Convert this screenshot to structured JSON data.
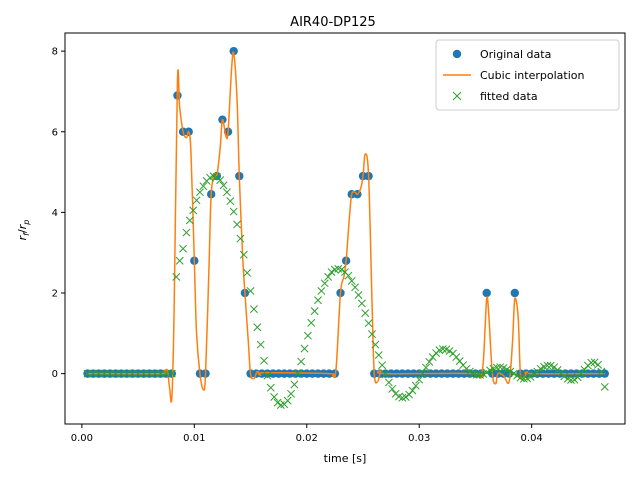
{
  "chart_data": {
    "type": "line",
    "title": "AIR40-DP125",
    "xlabel": "time [s]",
    "ylabel_main": "r",
    "ylabel_sub1": "f",
    "ylabel_sub2": "p",
    "xlim": [
      -0.0015,
      0.0483
    ],
    "ylim": [
      -1.25,
      8.45
    ],
    "xticks": [
      0.0,
      0.01,
      0.02,
      0.03,
      0.04
    ],
    "xtick_labels": [
      "0.00",
      "0.01",
      "0.02",
      "0.03",
      "0.04"
    ],
    "yticks": [
      0,
      2,
      4,
      6,
      8
    ],
    "ytick_labels": [
      "0",
      "2",
      "4",
      "6",
      "8"
    ],
    "legend_position": "top-right",
    "colors": {
      "original": "#1f77b4",
      "interp": "#ff7f0e",
      "fitted": "#2ca02c"
    },
    "series": [
      {
        "name": "Original data",
        "style": "markers-circle",
        "points": [
          [
            0.0005,
            0
          ],
          [
            0.001,
            0
          ],
          [
            0.0015,
            0
          ],
          [
            0.002,
            0
          ],
          [
            0.0025,
            0
          ],
          [
            0.003,
            0
          ],
          [
            0.0035,
            0
          ],
          [
            0.004,
            0
          ],
          [
            0.0045,
            0
          ],
          [
            0.005,
            0
          ],
          [
            0.0055,
            0
          ],
          [
            0.006,
            0
          ],
          [
            0.0065,
            0
          ],
          [
            0.007,
            0
          ],
          [
            0.0075,
            0
          ],
          [
            0.008,
            0
          ],
          [
            0.0085,
            6.9
          ],
          [
            0.009,
            6.0
          ],
          [
            0.0095,
            6.0
          ],
          [
            0.01,
            2.8
          ],
          [
            0.0105,
            0
          ],
          [
            0.011,
            0
          ],
          [
            0.0115,
            4.45
          ],
          [
            0.012,
            4.9
          ],
          [
            0.0125,
            6.3
          ],
          [
            0.013,
            6.0
          ],
          [
            0.0135,
            8.0
          ],
          [
            0.014,
            4.9
          ],
          [
            0.0145,
            2.0
          ],
          [
            0.015,
            0
          ],
          [
            0.0155,
            0
          ],
          [
            0.016,
            0
          ],
          [
            0.0165,
            0
          ],
          [
            0.017,
            0
          ],
          [
            0.0175,
            0
          ],
          [
            0.018,
            0
          ],
          [
            0.0185,
            0
          ],
          [
            0.019,
            0
          ],
          [
            0.0195,
            0
          ],
          [
            0.02,
            0
          ],
          [
            0.0205,
            0
          ],
          [
            0.021,
            0
          ],
          [
            0.0215,
            0
          ],
          [
            0.022,
            0
          ],
          [
            0.0225,
            0
          ],
          [
            0.023,
            2.0
          ],
          [
            0.0235,
            2.8
          ],
          [
            0.024,
            4.45
          ],
          [
            0.0245,
            4.45
          ],
          [
            0.025,
            4.9
          ],
          [
            0.0255,
            4.9
          ],
          [
            0.026,
            0
          ],
          [
            0.0265,
            0
          ],
          [
            0.027,
            0
          ],
          [
            0.0275,
            0
          ],
          [
            0.028,
            0
          ],
          [
            0.0285,
            0
          ],
          [
            0.029,
            0
          ],
          [
            0.0295,
            0
          ],
          [
            0.03,
            0
          ],
          [
            0.0305,
            0
          ],
          [
            0.031,
            0
          ],
          [
            0.0315,
            0
          ],
          [
            0.032,
            0
          ],
          [
            0.0325,
            0
          ],
          [
            0.033,
            0
          ],
          [
            0.0335,
            0
          ],
          [
            0.034,
            0
          ],
          [
            0.0345,
            0
          ],
          [
            0.035,
            0
          ],
          [
            0.0355,
            0
          ],
          [
            0.036,
            2.0
          ],
          [
            0.0365,
            0
          ],
          [
            0.037,
            0
          ],
          [
            0.0375,
            0
          ],
          [
            0.038,
            0
          ],
          [
            0.0385,
            2.0
          ],
          [
            0.039,
            0
          ],
          [
            0.0395,
            0
          ],
          [
            0.04,
            0
          ],
          [
            0.0405,
            0
          ],
          [
            0.041,
            0
          ],
          [
            0.0415,
            0
          ],
          [
            0.042,
            0
          ],
          [
            0.0425,
            0
          ],
          [
            0.043,
            0
          ],
          [
            0.0435,
            0
          ],
          [
            0.044,
            0
          ],
          [
            0.0445,
            0
          ],
          [
            0.045,
            0
          ],
          [
            0.0455,
            0
          ],
          [
            0.046,
            0
          ],
          [
            0.0465,
            0
          ]
        ]
      },
      {
        "name": "Cubic interpolation",
        "style": "line",
        "points": [
          [
            0.0005,
            0
          ],
          [
            0.007,
            0
          ],
          [
            0.0073,
            0.05
          ],
          [
            0.0076,
            0.08
          ],
          [
            0.0078,
            -0.35
          ],
          [
            0.008,
            -0.6
          ],
          [
            0.0082,
            1.5
          ],
          [
            0.0085,
            7.25
          ],
          [
            0.0087,
            6.6
          ],
          [
            0.009,
            6.0
          ],
          [
            0.0093,
            5.85
          ],
          [
            0.0095,
            6.0
          ],
          [
            0.0097,
            5.5
          ],
          [
            0.01,
            2.8
          ],
          [
            0.0102,
            1.0
          ],
          [
            0.0105,
            0
          ],
          [
            0.0108,
            -0.4
          ],
          [
            0.011,
            0
          ],
          [
            0.0113,
            2.6
          ],
          [
            0.0115,
            4.45
          ],
          [
            0.0118,
            4.95
          ],
          [
            0.012,
            4.9
          ],
          [
            0.0123,
            5.6
          ],
          [
            0.0125,
            6.3
          ],
          [
            0.0128,
            5.9
          ],
          [
            0.013,
            6.0
          ],
          [
            0.0133,
            7.5
          ],
          [
            0.0135,
            7.95
          ],
          [
            0.0138,
            6.8
          ],
          [
            0.014,
            4.9
          ],
          [
            0.0143,
            2.9
          ],
          [
            0.0145,
            2.0
          ],
          [
            0.0148,
            0.8
          ],
          [
            0.015,
            0
          ],
          [
            0.0153,
            -0.12
          ],
          [
            0.0156,
            0.05
          ],
          [
            0.0159,
            -0.04
          ],
          [
            0.0162,
            0.02
          ],
          [
            0.022,
            0
          ],
          [
            0.0223,
            -0.05
          ],
          [
            0.0226,
            0.1
          ],
          [
            0.023,
            2.0
          ],
          [
            0.0233,
            2.4
          ],
          [
            0.0235,
            2.8
          ],
          [
            0.0238,
            3.9
          ],
          [
            0.024,
            4.45
          ],
          [
            0.0243,
            4.5
          ],
          [
            0.0245,
            4.45
          ],
          [
            0.0248,
            4.6
          ],
          [
            0.025,
            4.9
          ],
          [
            0.0252,
            5.45
          ],
          [
            0.0255,
            4.9
          ],
          [
            0.0258,
            1.8
          ],
          [
            0.026,
            0
          ],
          [
            0.0263,
            -0.2
          ],
          [
            0.0266,
            0.06
          ],
          [
            0.027,
            0
          ],
          [
            0.035,
            0
          ],
          [
            0.0354,
            -0.1
          ],
          [
            0.0357,
            0.3
          ],
          [
            0.036,
            1.85
          ],
          [
            0.0362,
            1.4
          ],
          [
            0.0365,
            0
          ],
          [
            0.0368,
            -0.25
          ],
          [
            0.037,
            0
          ],
          [
            0.0375,
            -0.05
          ],
          [
            0.038,
            -0.2
          ],
          [
            0.0383,
            0.8
          ],
          [
            0.0385,
            1.85
          ],
          [
            0.0388,
            1.4
          ],
          [
            0.039,
            0
          ],
          [
            0.0393,
            -0.1
          ],
          [
            0.0396,
            0.04
          ],
          [
            0.04,
            0
          ],
          [
            0.0465,
            0
          ]
        ]
      },
      {
        "name": "fitted data",
        "style": "markers-x",
        "points": [
          [
            0.0005,
            0
          ],
          [
            0.001,
            0
          ],
          [
            0.0015,
            0
          ],
          [
            0.002,
            0
          ],
          [
            0.0025,
            0
          ],
          [
            0.003,
            0
          ],
          [
            0.0035,
            0
          ],
          [
            0.004,
            0
          ],
          [
            0.0045,
            0
          ],
          [
            0.005,
            0
          ],
          [
            0.0055,
            0
          ],
          [
            0.006,
            0
          ],
          [
            0.0065,
            0
          ],
          [
            0.007,
            0
          ],
          [
            0.0075,
            0
          ],
          [
            0.008,
            0
          ],
          [
            0.0084,
            2.4
          ],
          [
            0.0087,
            2.8
          ],
          [
            0.009,
            3.1
          ],
          [
            0.0093,
            3.5
          ],
          [
            0.0096,
            3.8
          ],
          [
            0.0099,
            4.05
          ],
          [
            0.0102,
            4.3
          ],
          [
            0.0105,
            4.5
          ],
          [
            0.0108,
            4.65
          ],
          [
            0.0111,
            4.78
          ],
          [
            0.0114,
            4.86
          ],
          [
            0.0117,
            4.9
          ],
          [
            0.012,
            4.88
          ],
          [
            0.0123,
            4.8
          ],
          [
            0.0126,
            4.67
          ],
          [
            0.0129,
            4.5
          ],
          [
            0.0132,
            4.28
          ],
          [
            0.0135,
            4.02
          ],
          [
            0.0138,
            3.7
          ],
          [
            0.0141,
            3.35
          ],
          [
            0.0144,
            2.95
          ],
          [
            0.0147,
            2.5
          ],
          [
            0.015,
            2.05
          ],
          [
            0.0153,
            1.6
          ],
          [
            0.0156,
            1.15
          ],
          [
            0.0159,
            0.72
          ],
          [
            0.0162,
            0.32
          ],
          [
            0.0165,
            -0.05
          ],
          [
            0.0168,
            -0.35
          ],
          [
            0.0171,
            -0.58
          ],
          [
            0.0174,
            -0.72
          ],
          [
            0.0177,
            -0.78
          ],
          [
            0.018,
            -0.76
          ],
          [
            0.0183,
            -0.67
          ],
          [
            0.0186,
            -0.5
          ],
          [
            0.0189,
            -0.27
          ],
          [
            0.0192,
            0
          ],
          [
            0.0195,
            0.3
          ],
          [
            0.0198,
            0.62
          ],
          [
            0.0201,
            0.94
          ],
          [
            0.0204,
            1.26
          ],
          [
            0.0207,
            1.55
          ],
          [
            0.021,
            1.82
          ],
          [
            0.0213,
            2.05
          ],
          [
            0.0216,
            2.24
          ],
          [
            0.0219,
            2.4
          ],
          [
            0.0222,
            2.52
          ],
          [
            0.0225,
            2.58
          ],
          [
            0.0228,
            2.6
          ],
          [
            0.0231,
            2.58
          ],
          [
            0.0234,
            2.52
          ],
          [
            0.0237,
            2.43
          ],
          [
            0.024,
            2.3
          ],
          [
            0.0243,
            2.14
          ],
          [
            0.0246,
            1.95
          ],
          [
            0.0249,
            1.74
          ],
          [
            0.0252,
            1.5
          ],
          [
            0.0255,
            1.25
          ],
          [
            0.0258,
            0.98
          ],
          [
            0.0261,
            0.72
          ],
          [
            0.0264,
            0.46
          ],
          [
            0.0267,
            0.21
          ],
          [
            0.027,
            -0.02
          ],
          [
            0.0273,
            -0.22
          ],
          [
            0.0276,
            -0.38
          ],
          [
            0.0279,
            -0.5
          ],
          [
            0.0282,
            -0.57
          ],
          [
            0.0285,
            -0.6
          ],
          [
            0.0288,
            -0.58
          ],
          [
            0.0291,
            -0.52
          ],
          [
            0.0294,
            -0.42
          ],
          [
            0.0297,
            -0.3
          ],
          [
            0.03,
            -0.15
          ],
          [
            0.0303,
            0
          ],
          [
            0.0306,
            0.15
          ],
          [
            0.0309,
            0.29
          ],
          [
            0.0312,
            0.41
          ],
          [
            0.0315,
            0.51
          ],
          [
            0.0318,
            0.58
          ],
          [
            0.0321,
            0.61
          ],
          [
            0.0324,
            0.6
          ],
          [
            0.0327,
            0.56
          ],
          [
            0.033,
            0.5
          ],
          [
            0.0333,
            0.41
          ],
          [
            0.0336,
            0.31
          ],
          [
            0.0339,
            0.21
          ],
          [
            0.0342,
            0.12
          ],
          [
            0.0345,
            0.05
          ],
          [
            0.0348,
            0
          ],
          [
            0.0351,
            -0.03
          ],
          [
            0.0354,
            -0.03
          ],
          [
            0.0357,
            -0.01
          ],
          [
            0.036,
            0.03
          ],
          [
            0.0363,
            0.08
          ],
          [
            0.0366,
            0.12
          ],
          [
            0.0369,
            0.15
          ],
          [
            0.0372,
            0.16
          ],
          [
            0.0375,
            0.14
          ],
          [
            0.0378,
            0.1
          ],
          [
            0.0381,
            0.05
          ],
          [
            0.0384,
            0
          ],
          [
            0.0387,
            -0.05
          ],
          [
            0.039,
            -0.1
          ],
          [
            0.0393,
            -0.13
          ],
          [
            0.0396,
            -0.12
          ],
          [
            0.0399,
            -0.08
          ],
          [
            0.0402,
            -0.02
          ],
          [
            0.0405,
            0.05
          ],
          [
            0.0408,
            0.12
          ],
          [
            0.0411,
            0.17
          ],
          [
            0.0414,
            0.2
          ],
          [
            0.0417,
            0.2
          ],
          [
            0.042,
            0.16
          ],
          [
            0.0423,
            0.09
          ],
          [
            0.0426,
            0.01
          ],
          [
            0.0429,
            -0.07
          ],
          [
            0.0432,
            -0.13
          ],
          [
            0.0435,
            -0.16
          ],
          [
            0.0438,
            -0.15
          ],
          [
            0.0441,
            -0.09
          ],
          [
            0.0444,
            0
          ],
          [
            0.0447,
            0.1
          ],
          [
            0.045,
            0.2
          ],
          [
            0.0453,
            0.27
          ],
          [
            0.0456,
            0.28
          ],
          [
            0.0459,
            0.22
          ],
          [
            0.0462,
            0.05
          ],
          [
            0.0465,
            -0.33
          ]
        ]
      }
    ]
  }
}
